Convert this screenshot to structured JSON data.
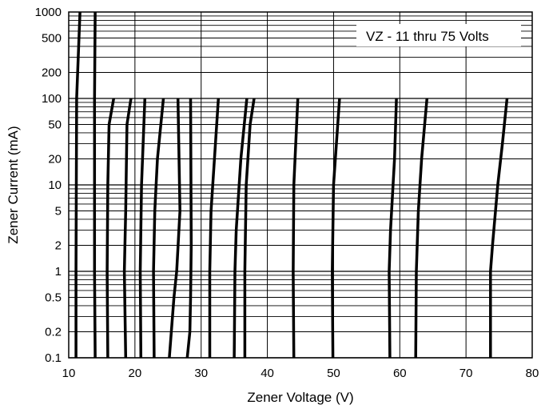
{
  "chart_data": {
    "type": "line",
    "title": "",
    "annotation": "VZ - 11 thru 75 Volts",
    "xlabel": "Zener Voltage (V)",
    "ylabel": "Zener Current (mA)",
    "xlim": [
      10,
      80
    ],
    "ylim": [
      0.1,
      1000
    ],
    "yscale": "log",
    "grid": true,
    "x_ticks": [
      10,
      20,
      30,
      40,
      50,
      60,
      70,
      80
    ],
    "y_ticks": [
      0.1,
      0.2,
      0.5,
      1,
      2,
      5,
      10,
      20,
      50,
      100,
      200,
      500,
      1000
    ],
    "x_tick_labels": [
      "10",
      "20",
      "30",
      "40",
      "50",
      "60",
      "70",
      "80"
    ],
    "y_tick_labels": [
      "0.1",
      "0.2",
      "0.5",
      "1",
      "2",
      "5",
      "10",
      "20",
      "50",
      "100",
      "200",
      "500",
      "1000"
    ],
    "series": [
      {
        "x": [
          11.1,
          11.1,
          11.2,
          11.7
        ],
        "y": [
          0.1,
          1,
          100,
          1000
        ]
      },
      {
        "x": [
          14.0,
          13.9,
          13.9,
          14.0
        ],
        "y": [
          0.1,
          1,
          100,
          1000
        ]
      },
      {
        "x": [
          15.9,
          15.8,
          15.9,
          16.1,
          16.8
        ],
        "y": [
          0.1,
          1,
          10,
          50,
          100
        ]
      },
      {
        "x": [
          18.6,
          18.4,
          18.6,
          18.8,
          19.4
        ],
        "y": [
          0.1,
          1,
          5,
          50,
          100
        ]
      },
      {
        "x": [
          20.9,
          20.8,
          21.0,
          21.5
        ],
        "y": [
          0.1,
          1,
          10,
          100
        ]
      },
      {
        "x": [
          22.9,
          22.8,
          23.0,
          23.4,
          24.3
        ],
        "y": [
          0.1,
          1,
          5,
          20,
          100
        ]
      },
      {
        "x": [
          25.2,
          25.9,
          26.3,
          26.8,
          26.5
        ],
        "y": [
          0.1,
          0.5,
          1,
          5,
          100
        ]
      },
      {
        "x": [
          27.9,
          28.3,
          28.4,
          28.5,
          28.4
        ],
        "y": [
          0.1,
          0.2,
          0.5,
          2,
          100
        ]
      },
      {
        "x": [
          31.3,
          31.3,
          31.5,
          32.6
        ],
        "y": [
          0.1,
          1,
          5,
          100
        ]
      },
      {
        "x": [
          35.0,
          35.1,
          35.3,
          36.0,
          36.9
        ],
        "y": [
          0.1,
          1,
          3,
          20,
          100
        ]
      },
      {
        "x": [
          36.6,
          36.6,
          36.8,
          37.4,
          38.0
        ],
        "y": [
          0.1,
          1,
          10,
          50,
          100
        ]
      },
      {
        "x": [
          44.0,
          43.9,
          44.0,
          44.6
        ],
        "y": [
          0.1,
          1,
          10,
          100
        ]
      },
      {
        "x": [
          49.9,
          49.8,
          50.0,
          50.9
        ],
        "y": [
          0.1,
          1,
          10,
          100
        ]
      },
      {
        "x": [
          58.5,
          58.4,
          58.6,
          59.2,
          59.5
        ],
        "y": [
          0.1,
          1,
          3,
          20,
          100
        ]
      },
      {
        "x": [
          62.4,
          62.5,
          62.8,
          63.3,
          64.1
        ],
        "y": [
          0.1,
          1,
          5,
          20,
          100
        ]
      },
      {
        "x": [
          73.7,
          73.7,
          74.0,
          74.8,
          75.5,
          76.2
        ],
        "y": [
          0.1,
          1,
          2,
          10,
          30,
          100
        ]
      }
    ]
  }
}
